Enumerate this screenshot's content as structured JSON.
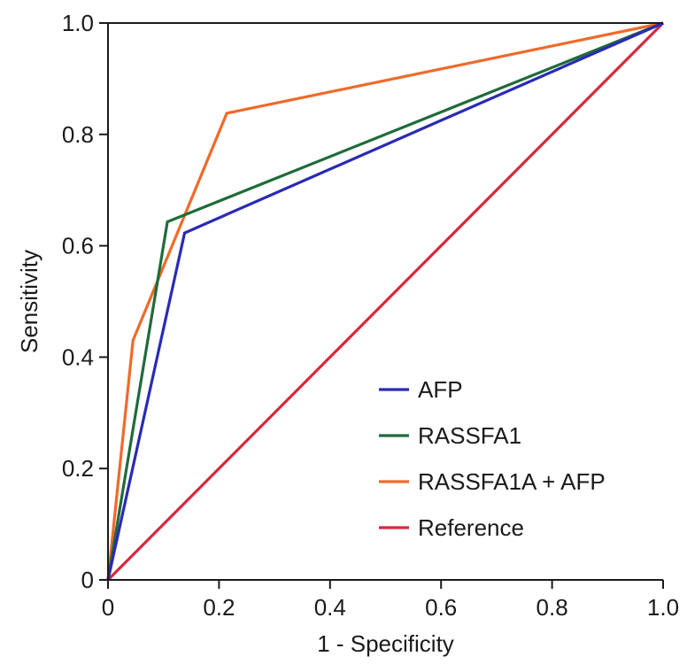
{
  "chart_data": {
    "type": "line",
    "title": "",
    "xlabel": "1 - Specificity",
    "ylabel": "Sensitivity",
    "xlim": [
      0,
      1
    ],
    "ylim": [
      0,
      1
    ],
    "x_ticks": [
      {
        "value": 0,
        "label": "0"
      },
      {
        "value": 0.2,
        "label": "0.2"
      },
      {
        "value": 0.4,
        "label": "0.4"
      },
      {
        "value": 0.6,
        "label": "0.6"
      },
      {
        "value": 0.8,
        "label": "0.8"
      },
      {
        "value": 1.0,
        "label": "1.0"
      }
    ],
    "y_ticks": [
      {
        "value": 0,
        "label": "0"
      },
      {
        "value": 0.2,
        "label": "0.2"
      },
      {
        "value": 0.4,
        "label": "0.4"
      },
      {
        "value": 0.6,
        "label": "0.6"
      },
      {
        "value": 0.8,
        "label": "0.8"
      },
      {
        "value": 1.0,
        "label": "1.0"
      }
    ],
    "grid": false,
    "legend_position": "bottom-right",
    "series": [
      {
        "name": "AFP",
        "color": "#2a2ab5",
        "points": [
          [
            0,
            0
          ],
          [
            0.138,
            0.623
          ],
          [
            1,
            1
          ]
        ]
      },
      {
        "name": "RASSFA1",
        "color": "#1f6b3a",
        "points": [
          [
            0,
            0
          ],
          [
            0.107,
            0.643
          ],
          [
            1,
            1
          ]
        ]
      },
      {
        "name": "RASSFA1A + AFP",
        "color": "#ef6a2a",
        "points": [
          [
            0,
            0
          ],
          [
            0.045,
            0.43
          ],
          [
            0.214,
            0.838
          ],
          [
            1,
            1
          ]
        ]
      },
      {
        "name": "Reference",
        "color": "#d8283a",
        "points": [
          [
            0,
            0
          ],
          [
            1,
            1
          ]
        ]
      }
    ]
  }
}
